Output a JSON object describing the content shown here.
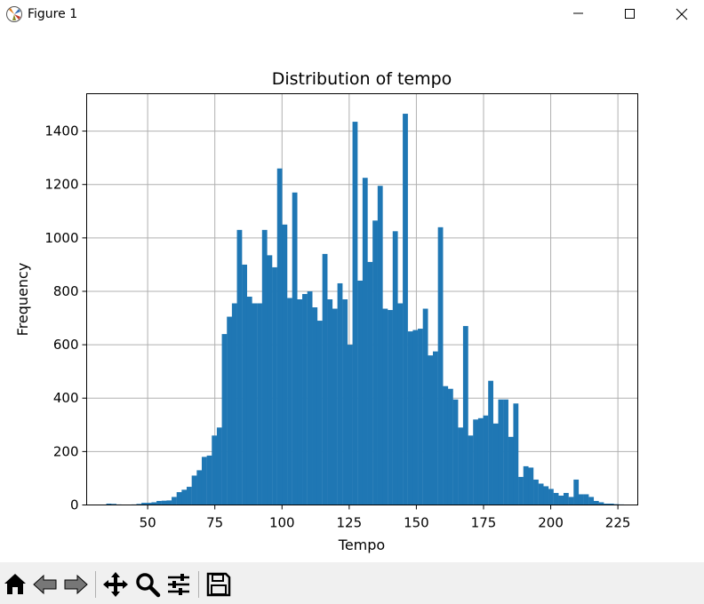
{
  "window": {
    "title": "Figure 1"
  },
  "toolbar": {
    "buttons": [
      {
        "icon": "home-icon"
      },
      {
        "icon": "back-arrow-icon"
      },
      {
        "icon": "forward-arrow-icon"
      },
      {
        "icon": "pan-icon"
      },
      {
        "icon": "zoom-icon"
      },
      {
        "icon": "configure-subplots-icon"
      },
      {
        "icon": "save-icon"
      }
    ]
  },
  "colors": {
    "bar": "#1f77b4",
    "grid": "#b0b0b0",
    "toolbar_bg": "#f0f0f0"
  },
  "chart_data": {
    "type": "bar",
    "title": "Distribution of tempo",
    "xlabel": "Tempo",
    "ylabel": "Frequency",
    "xlim": [
      27.3,
      232.4
    ],
    "ylim": [
      0,
      1540
    ],
    "xticks": [
      50,
      75,
      100,
      125,
      150,
      175,
      200,
      225
    ],
    "yticks": [
      0,
      200,
      400,
      600,
      800,
      1000,
      1200,
      1400
    ],
    "grid": true,
    "bin_start": 34.6,
    "bin_width": 1.87,
    "values": [
      5,
      4,
      2,
      1,
      1,
      2,
      4,
      8,
      8,
      10,
      15,
      16,
      17,
      30,
      48,
      57,
      68,
      110,
      130,
      180,
      185,
      260,
      290,
      640,
      705,
      755,
      1030,
      900,
      780,
      755,
      755,
      1030,
      935,
      890,
      1260,
      1050,
      775,
      1170,
      770,
      790,
      800,
      740,
      690,
      940,
      770,
      735,
      830,
      770,
      600,
      1435,
      840,
      1225,
      910,
      1065,
      1195,
      735,
      730,
      1025,
      755,
      1465,
      650,
      655,
      660,
      735,
      560,
      575,
      1040,
      445,
      435,
      395,
      290,
      670,
      260,
      320,
      325,
      335,
      465,
      305,
      395,
      395,
      255,
      380,
      105,
      145,
      140,
      95,
      80,
      70,
      60,
      45,
      35,
      45,
      30,
      95,
      40,
      40,
      30,
      15,
      10,
      5,
      5,
      3,
      2,
      1,
      1
    ]
  }
}
